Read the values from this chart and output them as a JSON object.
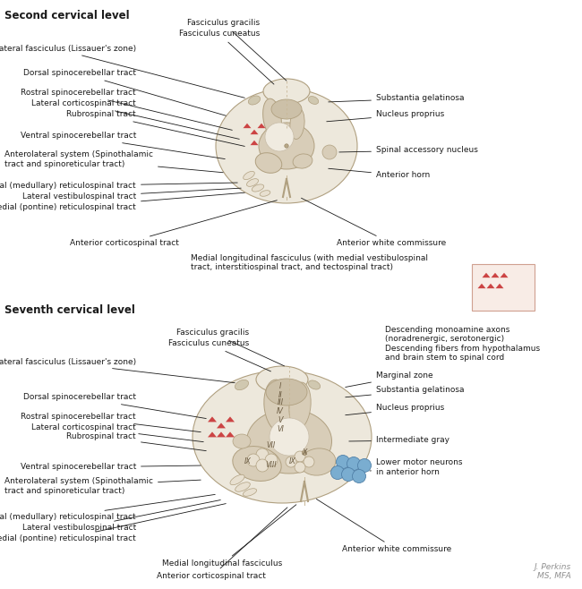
{
  "title_top": "Second cervical level",
  "title_bottom": "Seventh cervical level",
  "bg": "#ffffff",
  "wm_fill": "#ede8dc",
  "wm_edge": "#b0a080",
  "gm_fill": "#d8cdb8",
  "gm_edge": "#b0a080",
  "pc_fill": "#ccc0a8",
  "dlf_fill": "#d0c8b0",
  "inner_fill": "#f0ebe0",
  "tri_color": "#cc4444",
  "circle_color": "#7aadd0",
  "circle_edge": "#5080a8",
  "text_color": "#1a1a1a",
  "line_color": "#1a1a1a",
  "fs": 6.5,
  "fs_title": 8.5,
  "signature": "J. Perkins\nMS, MFA"
}
